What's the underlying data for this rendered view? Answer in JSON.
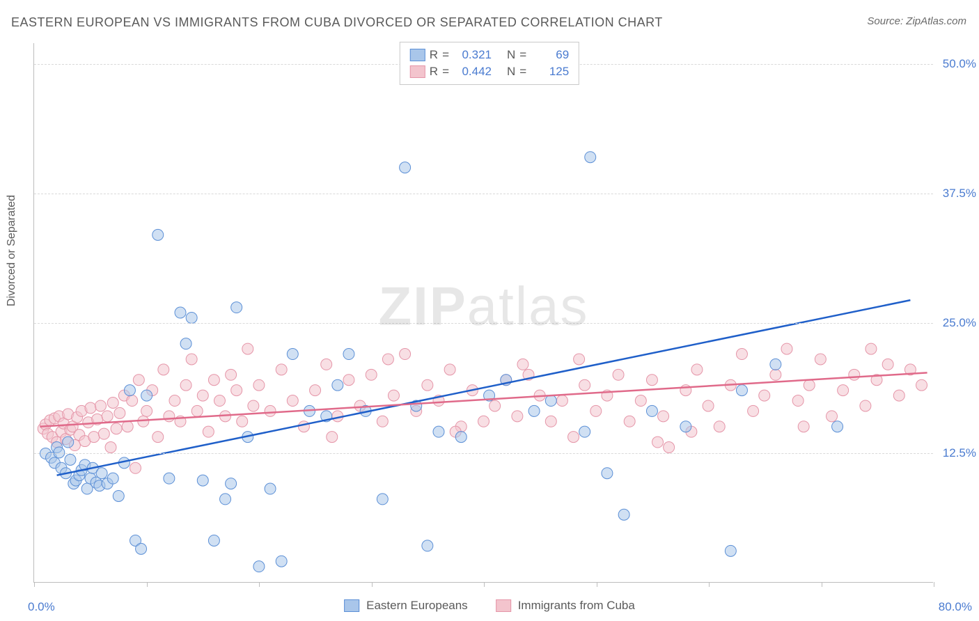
{
  "title": "EASTERN EUROPEAN VS IMMIGRANTS FROM CUBA DIVORCED OR SEPARATED CORRELATION CHART",
  "source_label": "Source: ",
  "source_name": "ZipAtlas.com",
  "ylabel": "Divorced or Separated",
  "watermark_prefix": "ZIP",
  "watermark_suffix": "atlas",
  "chart": {
    "type": "scatter",
    "xlim": [
      0,
      80
    ],
    "ylim": [
      0,
      52
    ],
    "x_origin_label": "0.0%",
    "x_end_label": "80.0%",
    "ytick_labels": [
      "12.5%",
      "25.0%",
      "37.5%",
      "50.0%"
    ],
    "ytick_values": [
      12.5,
      25.0,
      37.5,
      50.0
    ],
    "xtick_values": [
      0,
      10,
      20,
      30,
      40,
      50,
      60,
      70,
      80
    ],
    "background_color": "#ffffff",
    "grid_color": "#d9d9d9",
    "axis_color": "#bdbdbd",
    "label_text_color": "#5a5a5a",
    "tick_label_color": "#4a7bd0",
    "marker_radius": 8,
    "marker_opacity": 0.55,
    "line_width": 2.5,
    "series": [
      {
        "name": "Eastern Europeans",
        "fill_color": "#a9c6ea",
        "stroke_color": "#5b8fd6",
        "line_color": "#1f5fc9",
        "r_value": "0.321",
        "n_value": "69",
        "trend": {
          "x1": 2,
          "y1": 10.3,
          "x2": 78,
          "y2": 27.2
        },
        "points": [
          [
            1.0,
            12.4
          ],
          [
            1.5,
            12.0
          ],
          [
            1.8,
            11.5
          ],
          [
            2.0,
            13.0
          ],
          [
            2.2,
            12.5
          ],
          [
            2.4,
            11.0
          ],
          [
            2.8,
            10.5
          ],
          [
            3.0,
            13.5
          ],
          [
            3.2,
            11.8
          ],
          [
            3.5,
            9.5
          ],
          [
            3.7,
            9.8
          ],
          [
            4.0,
            10.3
          ],
          [
            4.2,
            10.8
          ],
          [
            4.5,
            11.3
          ],
          [
            4.7,
            9.0
          ],
          [
            5.0,
            10.0
          ],
          [
            5.2,
            11.0
          ],
          [
            5.5,
            9.6
          ],
          [
            5.8,
            9.3
          ],
          [
            6.0,
            10.5
          ],
          [
            6.5,
            9.5
          ],
          [
            7.0,
            10.0
          ],
          [
            7.5,
            8.3
          ],
          [
            8.0,
            11.5
          ],
          [
            8.5,
            18.5
          ],
          [
            9.0,
            4.0
          ],
          [
            9.5,
            3.2
          ],
          [
            10.0,
            18.0
          ],
          [
            11.0,
            33.5
          ],
          [
            12.0,
            10.0
          ],
          [
            13.0,
            26.0
          ],
          [
            13.5,
            23.0
          ],
          [
            14.0,
            25.5
          ],
          [
            15.0,
            9.8
          ],
          [
            16.0,
            4.0
          ],
          [
            17.0,
            8.0
          ],
          [
            17.5,
            9.5
          ],
          [
            18.0,
            26.5
          ],
          [
            19.0,
            14.0
          ],
          [
            20.0,
            1.5
          ],
          [
            21.0,
            9.0
          ],
          [
            22.0,
            2.0
          ],
          [
            23.0,
            22.0
          ],
          [
            24.5,
            16.5
          ],
          [
            26.0,
            16.0
          ],
          [
            27.0,
            19.0
          ],
          [
            28.0,
            22.0
          ],
          [
            29.5,
            16.5
          ],
          [
            31.0,
            8.0
          ],
          [
            33.0,
            40.0
          ],
          [
            34.0,
            17.0
          ],
          [
            35.0,
            3.5
          ],
          [
            36.0,
            14.5
          ],
          [
            38.0,
            14.0
          ],
          [
            40.5,
            18.0
          ],
          [
            42.0,
            19.5
          ],
          [
            44.5,
            16.5
          ],
          [
            46.0,
            17.5
          ],
          [
            47.5,
            51.0
          ],
          [
            49.0,
            14.5
          ],
          [
            49.5,
            41.0
          ],
          [
            51.0,
            10.5
          ],
          [
            52.5,
            6.5
          ],
          [
            55.0,
            16.5
          ],
          [
            58.0,
            15.0
          ],
          [
            62.0,
            3.0
          ],
          [
            63.0,
            18.5
          ],
          [
            66.0,
            21.0
          ],
          [
            71.5,
            15.0
          ]
        ]
      },
      {
        "name": "Immigrants from Cuba",
        "fill_color": "#f3c4cd",
        "stroke_color": "#e595a8",
        "line_color": "#e06a8a",
        "r_value": "0.442",
        "n_value": "125",
        "trend": {
          "x1": 0.5,
          "y1": 15.0,
          "x2": 79.5,
          "y2": 20.2
        },
        "points": [
          [
            0.8,
            14.8
          ],
          [
            1.0,
            15.2
          ],
          [
            1.2,
            14.3
          ],
          [
            1.4,
            15.6
          ],
          [
            1.6,
            14.0
          ],
          [
            1.8,
            15.8
          ],
          [
            2.0,
            13.5
          ],
          [
            2.2,
            16.0
          ],
          [
            2.4,
            14.5
          ],
          [
            2.6,
            15.3
          ],
          [
            2.8,
            13.8
          ],
          [
            3.0,
            16.2
          ],
          [
            3.2,
            14.7
          ],
          [
            3.4,
            15.0
          ],
          [
            3.6,
            13.2
          ],
          [
            3.8,
            15.9
          ],
          [
            4.0,
            14.2
          ],
          [
            4.2,
            16.5
          ],
          [
            4.5,
            13.6
          ],
          [
            4.8,
            15.4
          ],
          [
            5.0,
            16.8
          ],
          [
            5.3,
            14.0
          ],
          [
            5.6,
            15.7
          ],
          [
            5.9,
            17.0
          ],
          [
            6.2,
            14.3
          ],
          [
            6.5,
            16.0
          ],
          [
            6.8,
            13.0
          ],
          [
            7.0,
            17.3
          ],
          [
            7.3,
            14.8
          ],
          [
            7.6,
            16.3
          ],
          [
            8.0,
            18.0
          ],
          [
            8.3,
            15.0
          ],
          [
            8.7,
            17.5
          ],
          [
            9.0,
            11.0
          ],
          [
            9.3,
            19.5
          ],
          [
            9.7,
            15.5
          ],
          [
            10.0,
            16.5
          ],
          [
            10.5,
            18.5
          ],
          [
            11.0,
            14.0
          ],
          [
            11.5,
            20.5
          ],
          [
            12.0,
            16.0
          ],
          [
            12.5,
            17.5
          ],
          [
            13.0,
            15.5
          ],
          [
            13.5,
            19.0
          ],
          [
            14.0,
            21.5
          ],
          [
            14.5,
            16.5
          ],
          [
            15.0,
            18.0
          ],
          [
            15.5,
            14.5
          ],
          [
            16.0,
            19.5
          ],
          [
            16.5,
            17.5
          ],
          [
            17.0,
            16.0
          ],
          [
            17.5,
            20.0
          ],
          [
            18.0,
            18.5
          ],
          [
            18.5,
            15.5
          ],
          [
            19.0,
            22.5
          ],
          [
            19.5,
            17.0
          ],
          [
            20.0,
            19.0
          ],
          [
            21.0,
            16.5
          ],
          [
            22.0,
            20.5
          ],
          [
            23.0,
            17.5
          ],
          [
            24.0,
            15.0
          ],
          [
            25.0,
            18.5
          ],
          [
            26.0,
            21.0
          ],
          [
            27.0,
            16.0
          ],
          [
            28.0,
            19.5
          ],
          [
            29.0,
            17.0
          ],
          [
            30.0,
            20.0
          ],
          [
            31.0,
            15.5
          ],
          [
            32.0,
            18.0
          ],
          [
            33.0,
            22.0
          ],
          [
            34.0,
            16.5
          ],
          [
            35.0,
            19.0
          ],
          [
            36.0,
            17.5
          ],
          [
            37.0,
            20.5
          ],
          [
            38.0,
            15.0
          ],
          [
            39.0,
            18.5
          ],
          [
            40.0,
            15.5
          ],
          [
            41.0,
            17.0
          ],
          [
            42.0,
            19.5
          ],
          [
            43.0,
            16.0
          ],
          [
            44.0,
            20.0
          ],
          [
            45.0,
            18.0
          ],
          [
            46.0,
            15.5
          ],
          [
            47.0,
            17.5
          ],
          [
            48.0,
            14.0
          ],
          [
            49.0,
            19.0
          ],
          [
            50.0,
            16.5
          ],
          [
            51.0,
            18.0
          ],
          [
            52.0,
            20.0
          ],
          [
            53.0,
            15.5
          ],
          [
            54.0,
            17.5
          ],
          [
            55.0,
            19.5
          ],
          [
            56.0,
            16.0
          ],
          [
            56.5,
            13.0
          ],
          [
            58.0,
            18.5
          ],
          [
            59.0,
            20.5
          ],
          [
            60.0,
            17.0
          ],
          [
            61.0,
            15.0
          ],
          [
            62.0,
            19.0
          ],
          [
            63.0,
            22.0
          ],
          [
            64.0,
            16.5
          ],
          [
            65.0,
            18.0
          ],
          [
            66.0,
            20.0
          ],
          [
            67.0,
            22.5
          ],
          [
            68.0,
            17.5
          ],
          [
            69.0,
            19.0
          ],
          [
            70.0,
            21.5
          ],
          [
            71.0,
            16.0
          ],
          [
            72.0,
            18.5
          ],
          [
            73.0,
            20.0
          ],
          [
            74.0,
            17.0
          ],
          [
            75.0,
            19.5
          ],
          [
            76.0,
            21.0
          ],
          [
            77.0,
            18.0
          ],
          [
            78.0,
            20.5
          ],
          [
            79.0,
            19.0
          ],
          [
            55.5,
            13.5
          ],
          [
            48.5,
            21.5
          ],
          [
            26.5,
            14.0
          ],
          [
            31.5,
            21.5
          ],
          [
            37.5,
            14.5
          ],
          [
            43.5,
            21.0
          ],
          [
            58.5,
            14.5
          ],
          [
            68.5,
            15.0
          ],
          [
            74.5,
            22.5
          ]
        ]
      }
    ]
  },
  "legend_top": {
    "r_label": "R",
    "n_label": "N",
    "eq": "="
  },
  "legend_bottom_labels": [
    "Eastern Europeans",
    "Immigrants from Cuba"
  ]
}
